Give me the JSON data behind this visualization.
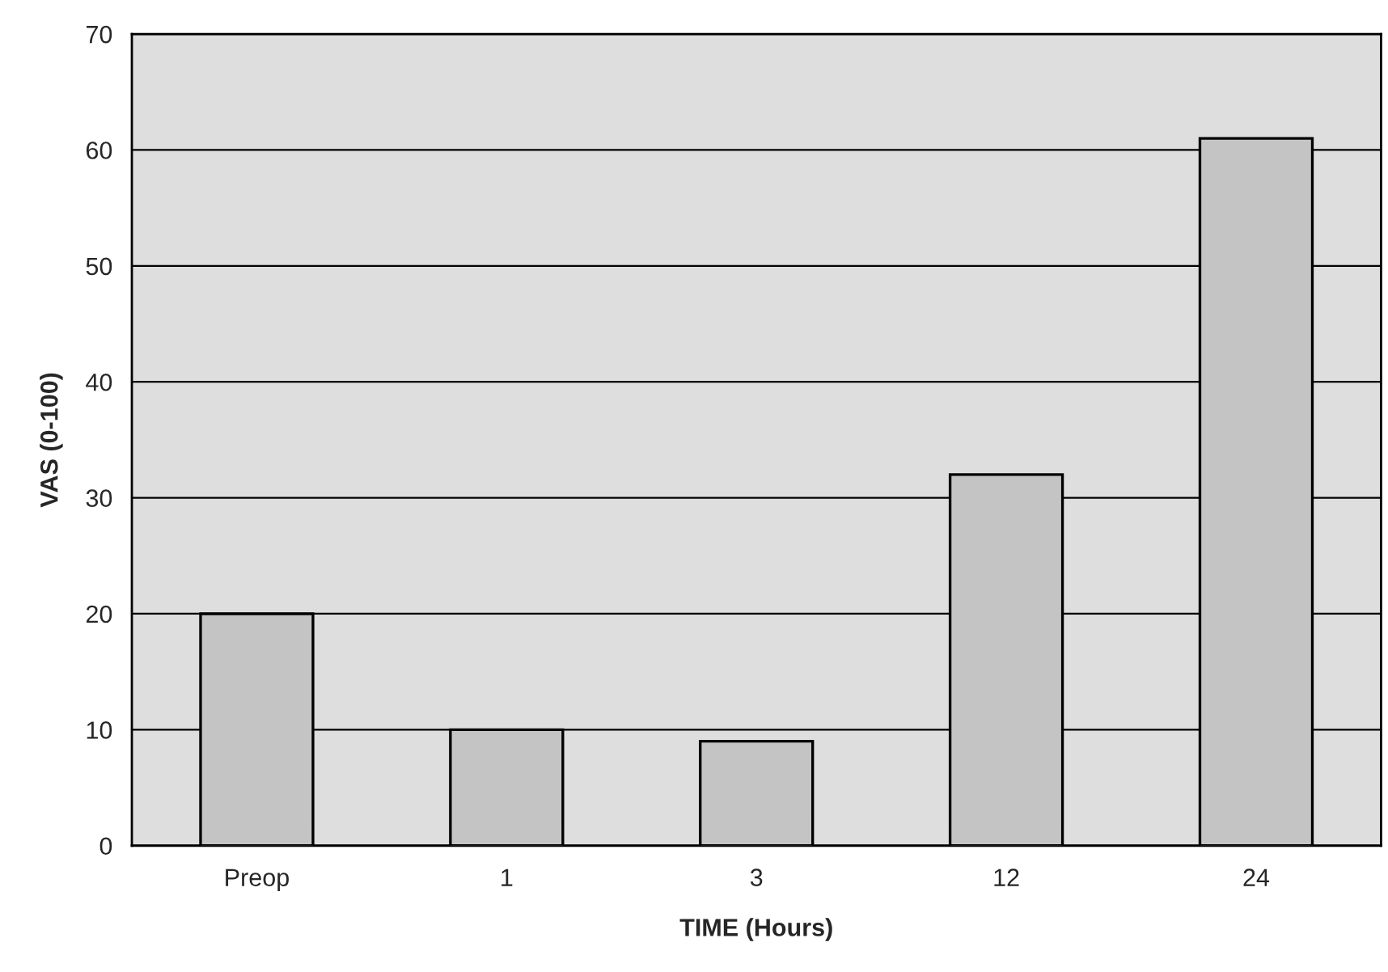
{
  "chart_data": {
    "type": "bar",
    "xlabel": "TIME (Hours)",
    "ylabel": "VAS (0-100)",
    "categories": [
      "Preop",
      "1",
      "3",
      "12",
      "24"
    ],
    "values": [
      20,
      10,
      9,
      32,
      61
    ],
    "color": "#c4c4c4",
    "ylim": [
      0,
      70
    ],
    "yticks": [
      0,
      10,
      20,
      30,
      40,
      50,
      60,
      70
    ],
    "grid": "y"
  }
}
